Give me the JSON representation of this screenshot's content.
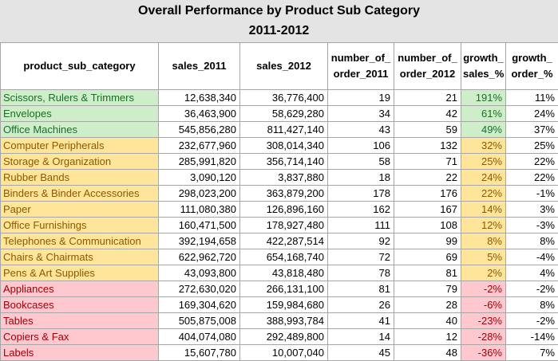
{
  "title": "Overall Performance by Product Sub Category",
  "subtitle": "2011-2012",
  "columns": [
    "product_sub_category",
    "sales_2011",
    "sales_2012",
    "number_of_ order_2011",
    "number_of_ order_2012",
    "growth_ sales_%",
    "growth_ order_%"
  ],
  "rows": [
    {
      "category": "Scissors, Rulers & Trimmers",
      "sales_2011": "12,638,340",
      "sales_2012": "36,776,400",
      "orders_2011": "19",
      "orders_2012": "21",
      "growth_sales": "191%",
      "growth_order": "11%",
      "status": "good"
    },
    {
      "category": "Envelopes",
      "sales_2011": "36,463,900",
      "sales_2012": "58,629,280",
      "orders_2011": "34",
      "orders_2012": "42",
      "growth_sales": "61%",
      "growth_order": "24%",
      "status": "good"
    },
    {
      "category": "Office Machines",
      "sales_2011": "545,856,280",
      "sales_2012": "811,427,140",
      "orders_2011": "43",
      "orders_2012": "59",
      "growth_sales": "49%",
      "growth_order": "37%",
      "status": "good"
    },
    {
      "category": "Computer Peripherals",
      "sales_2011": "232,677,960",
      "sales_2012": "308,014,340",
      "orders_2011": "106",
      "orders_2012": "132",
      "growth_sales": "32%",
      "growth_order": "25%",
      "status": "mid"
    },
    {
      "category": "Storage & Organization",
      "sales_2011": "285,991,820",
      "sales_2012": "356,714,140",
      "orders_2011": "58",
      "orders_2012": "71",
      "growth_sales": "25%",
      "growth_order": "22%",
      "status": "mid"
    },
    {
      "category": "Rubber Bands",
      "sales_2011": "3,090,120",
      "sales_2012": "3,837,880",
      "orders_2011": "18",
      "orders_2012": "22",
      "growth_sales": "24%",
      "growth_order": "22%",
      "status": "mid"
    },
    {
      "category": "Binders & Binder Accessories",
      "sales_2011": "298,023,200",
      "sales_2012": "363,879,200",
      "orders_2011": "178",
      "orders_2012": "176",
      "growth_sales": "22%",
      "growth_order": "-1%",
      "status": "mid"
    },
    {
      "category": "Paper",
      "sales_2011": "111,080,380",
      "sales_2012": "126,896,160",
      "orders_2011": "162",
      "orders_2012": "167",
      "growth_sales": "14%",
      "growth_order": "3%",
      "status": "mid"
    },
    {
      "category": "Office Furnishings",
      "sales_2011": "160,471,500",
      "sales_2012": "178,927,480",
      "orders_2011": "111",
      "orders_2012": "108",
      "growth_sales": "12%",
      "growth_order": "-3%",
      "status": "mid"
    },
    {
      "category": "Telephones & Communication",
      "sales_2011": "392,194,658",
      "sales_2012": "422,287,514",
      "orders_2011": "92",
      "orders_2012": "99",
      "growth_sales": "8%",
      "growth_order": "8%",
      "status": "mid"
    },
    {
      "category": "Chairs & Chairmats",
      "sales_2011": "622,962,720",
      "sales_2012": "654,168,740",
      "orders_2011": "72",
      "orders_2012": "69",
      "growth_sales": "5%",
      "growth_order": "-4%",
      "status": "mid"
    },
    {
      "category": "Pens & Art Supplies",
      "sales_2011": "43,093,800",
      "sales_2012": "43,818,480",
      "orders_2011": "78",
      "orders_2012": "81",
      "growth_sales": "2%",
      "growth_order": "4%",
      "status": "mid"
    },
    {
      "category": "Appliances",
      "sales_2011": "272,630,020",
      "sales_2012": "266,131,100",
      "orders_2011": "81",
      "orders_2012": "79",
      "growth_sales": "-2%",
      "growth_order": "-2%",
      "status": "bad"
    },
    {
      "category": "Bookcases",
      "sales_2011": "169,304,620",
      "sales_2012": "159,984,680",
      "orders_2011": "26",
      "orders_2012": "28",
      "growth_sales": "-6%",
      "growth_order": "8%",
      "status": "bad"
    },
    {
      "category": "Tables",
      "sales_2011": "505,875,008",
      "sales_2012": "388,993,784",
      "orders_2011": "41",
      "orders_2012": "40",
      "growth_sales": "-23%",
      "growth_order": "-2%",
      "status": "bad"
    },
    {
      "category": "Copiers & Fax",
      "sales_2011": "404,074,080",
      "sales_2012": "292,489,800",
      "orders_2011": "14",
      "orders_2012": "12",
      "growth_sales": "-28%",
      "growth_order": "-14%",
      "status": "bad"
    },
    {
      "category": "Labels",
      "sales_2011": "15,607,780",
      "sales_2012": "10,007,040",
      "orders_2011": "45",
      "orders_2012": "48",
      "growth_sales": "-36%",
      "growth_order": "7%",
      "status": "bad"
    }
  ]
}
